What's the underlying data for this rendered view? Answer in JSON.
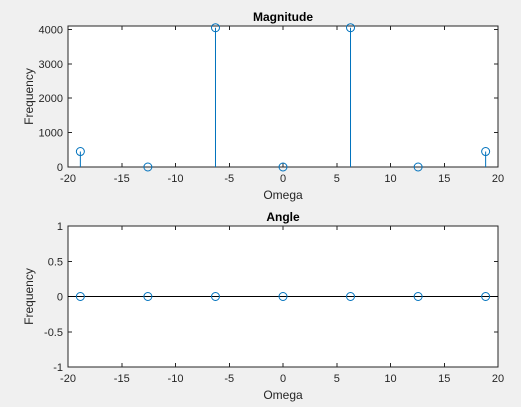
{
  "colors": {
    "background": "#f0f0f0",
    "axes_background": "#ffffff",
    "axis": "#262626",
    "series": "#0072bd"
  },
  "chart_data": [
    {
      "type": "stem",
      "title": "Magnitude",
      "xlabel": "Omega",
      "ylabel": "Frequency",
      "xlim": [
        -20,
        20
      ],
      "ylim": [
        0,
        4100
      ],
      "xticks": [
        -20,
        -15,
        -10,
        -5,
        0,
        5,
        10,
        15,
        20
      ],
      "xtick_labels": [
        "-20",
        "-15",
        "-10",
        "-5",
        "0",
        "5",
        "10",
        "15",
        "20"
      ],
      "yticks": [
        0,
        1000,
        2000,
        3000,
        4000
      ],
      "ytick_labels": [
        "0",
        "1000",
        "2000",
        "3000",
        "4000"
      ],
      "grid": false,
      "x": [
        -18.85,
        -12.57,
        -6.28,
        0,
        6.28,
        12.57,
        18.85
      ],
      "y": [
        450,
        0,
        4050,
        0,
        4050,
        0,
        450
      ]
    },
    {
      "type": "stem",
      "title": "Angle",
      "xlabel": "Omega",
      "ylabel": "Frequency",
      "xlim": [
        -20,
        20
      ],
      "ylim": [
        -1,
        1
      ],
      "xticks": [
        -20,
        -15,
        -10,
        -5,
        0,
        5,
        10,
        15,
        20
      ],
      "xtick_labels": [
        "-20",
        "-15",
        "-10",
        "-5",
        "0",
        "5",
        "10",
        "15",
        "20"
      ],
      "yticks": [
        -1,
        -0.5,
        0,
        0.5,
        1
      ],
      "ytick_labels": [
        "-1",
        "-0.5",
        "0",
        "0.5",
        "1"
      ],
      "grid": false,
      "baseline": 0,
      "x": [
        -18.85,
        -12.57,
        -6.28,
        0,
        6.28,
        12.57,
        18.85
      ],
      "y": [
        0,
        0,
        0,
        0,
        0,
        0,
        0
      ]
    }
  ]
}
